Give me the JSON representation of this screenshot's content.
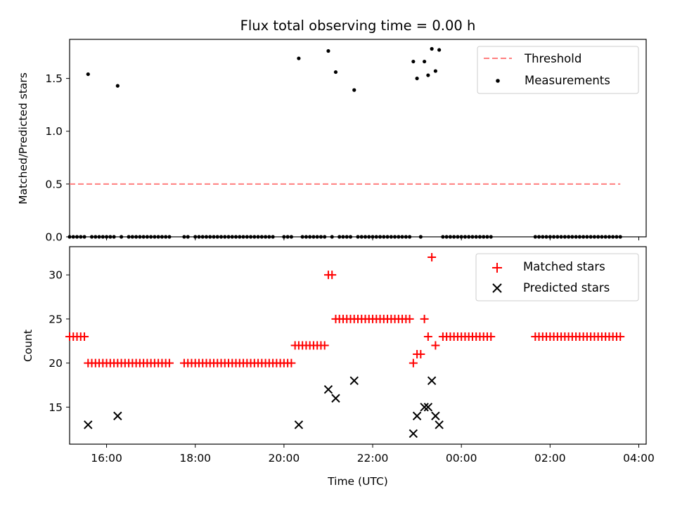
{
  "chart_data": [
    {
      "type": "scatter",
      "title": "Flux total observing time = 0.00 h",
      "ylabel": "Matched/Predicted stars",
      "xlim": [
        "15:10",
        "04:10"
      ],
      "ylim": [
        0,
        1.87
      ],
      "yticks": [
        "0.0",
        "0.5",
        "1.0",
        "1.5"
      ],
      "legend": {
        "placement": "top-right",
        "entries": [
          "Threshold",
          "Measurements"
        ]
      },
      "threshold": {
        "name": "Threshold",
        "y": 0.5,
        "x_range": [
          "15:10",
          "03:35"
        ],
        "color": "#ff7f7f",
        "style": "dashed"
      },
      "series": [
        {
          "name": "Measurements",
          "color": "#000000",
          "points": [
            [
              "15:35",
              1.54
            ],
            [
              "16:15",
              1.43
            ],
            [
              "20:20",
              1.69
            ],
            [
              "21:00",
              1.76
            ],
            [
              "21:10",
              1.56
            ],
            [
              "21:35",
              1.39
            ],
            [
              "22:55",
              1.66
            ],
            [
              "23:00",
              1.5
            ],
            [
              "23:10",
              1.66
            ],
            [
              "23:15",
              1.53
            ],
            [
              "23:20",
              1.78
            ],
            [
              "23:25",
              1.57
            ],
            [
              "23:30",
              1.77
            ]
          ],
          "zero_times": [
            "15:10",
            "15:15",
            "15:20",
            "15:25",
            "15:30",
            "15:40",
            "15:45",
            "15:50",
            "15:55",
            "16:00",
            "16:05",
            "16:10",
            "16:20",
            "16:30",
            "16:35",
            "16:40",
            "16:45",
            "16:50",
            "16:55",
            "17:00",
            "17:05",
            "17:10",
            "17:15",
            "17:20",
            "17:25",
            "17:45",
            "17:50",
            "18:00",
            "18:05",
            "18:10",
            "18:15",
            "18:20",
            "18:25",
            "18:30",
            "18:35",
            "18:40",
            "18:45",
            "18:50",
            "18:55",
            "19:00",
            "19:05",
            "19:10",
            "19:15",
            "19:20",
            "19:25",
            "19:30",
            "19:35",
            "19:40",
            "19:45",
            "20:00",
            "20:05",
            "20:10",
            "20:25",
            "20:30",
            "20:35",
            "20:40",
            "20:45",
            "20:50",
            "20:55",
            "21:05",
            "21:15",
            "21:20",
            "21:25",
            "21:30",
            "21:40",
            "21:45",
            "21:50",
            "21:55",
            "22:00",
            "22:05",
            "22:10",
            "22:15",
            "22:20",
            "22:25",
            "22:30",
            "22:35",
            "22:40",
            "22:45",
            "22:50",
            "23:05",
            "23:35",
            "23:40",
            "23:45",
            "23:50",
            "23:55",
            "00:00",
            "00:05",
            "00:10",
            "00:15",
            "00:20",
            "00:25",
            "00:30",
            "00:35",
            "00:40",
            "01:40",
            "01:45",
            "01:50",
            "01:55",
            "02:00",
            "02:05",
            "02:10",
            "02:15",
            "02:20",
            "02:25",
            "02:30",
            "02:35",
            "02:40",
            "02:45",
            "02:50",
            "02:55",
            "03:00",
            "03:05",
            "03:10",
            "03:15",
            "03:20",
            "03:25",
            "03:30",
            "03:35"
          ]
        }
      ]
    },
    {
      "type": "scatter",
      "title": "",
      "xlabel": "Time (UTC)",
      "ylabel": "Count",
      "xlim": [
        "15:10",
        "04:10"
      ],
      "ylim": [
        10.8,
        33.2
      ],
      "xticks": [
        "16:00",
        "18:00",
        "20:00",
        "22:00",
        "00:00",
        "02:00",
        "04:00"
      ],
      "yticks": [
        "15",
        "20",
        "25",
        "30"
      ],
      "legend": {
        "placement": "top-right",
        "entries": [
          "Matched stars",
          "Predicted stars"
        ]
      },
      "series": [
        {
          "name": "Matched stars",
          "marker": "plus",
          "color": "#ff0000",
          "groups": [
            {
              "from": "15:10",
              "to": "15:30",
              "value": 23
            },
            {
              "from": "15:35",
              "to": "17:25",
              "value": 20
            },
            {
              "from": "17:45",
              "to": "20:10",
              "value": 20
            },
            {
              "from": "20:15",
              "to": "20:55",
              "value": 22
            },
            {
              "from": "21:00",
              "to": "21:05",
              "value": 30
            },
            {
              "from": "21:10",
              "to": "22:50",
              "value": 25
            },
            {
              "from": "23:35",
              "to": "00:40",
              "value": 23
            },
            {
              "from": "01:40",
              "to": "03:35",
              "value": 23
            }
          ],
          "points": [
            [
              "22:55",
              20
            ],
            [
              "23:00",
              21
            ],
            [
              "23:05",
              21
            ],
            [
              "23:10",
              25
            ],
            [
              "23:15",
              23
            ],
            [
              "23:20",
              32
            ],
            [
              "23:25",
              22
            ]
          ]
        },
        {
          "name": "Predicted stars",
          "marker": "x",
          "color": "#000000",
          "points": [
            [
              "15:35",
              13
            ],
            [
              "16:15",
              14
            ],
            [
              "20:20",
              13
            ],
            [
              "21:00",
              17
            ],
            [
              "21:10",
              16
            ],
            [
              "21:35",
              18
            ],
            [
              "22:55",
              12
            ],
            [
              "23:00",
              14
            ],
            [
              "23:10",
              15
            ],
            [
              "23:15",
              15
            ],
            [
              "23:20",
              18
            ],
            [
              "23:25",
              14
            ],
            [
              "23:30",
              13
            ]
          ]
        }
      ]
    }
  ]
}
